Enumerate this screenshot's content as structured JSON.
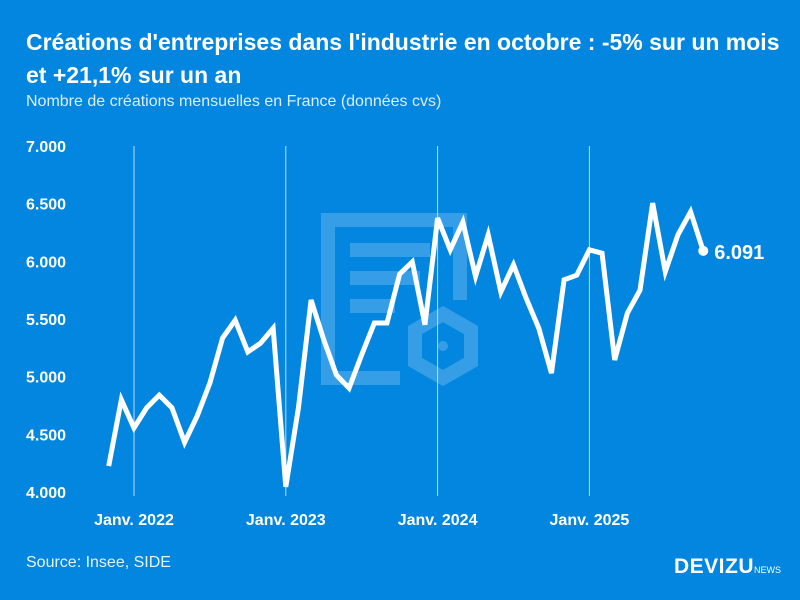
{
  "header": {
    "title": "Créations d'entreprises dans l'industrie en octobre : -5% sur un mois et +21,1% sur un an",
    "subtitle": "Nombre de créations mensuelles en France (données cvs)"
  },
  "footer": {
    "source": "Source: Insee, SIDE",
    "logo_main": "DEVIZU",
    "logo_sub": "NEWS"
  },
  "colors": {
    "background": "#0286e0",
    "line": "#ffffff"
  },
  "chart_data": {
    "type": "line",
    "title": "Créations d'entreprises dans l'industrie en octobre : -5% sur un mois et +21,1% sur un an",
    "subtitle": "Nombre de créations mensuelles en France (données cvs)",
    "ylim": [
      4000,
      7000
    ],
    "yticks": [
      "4.000",
      "4.500",
      "5.000",
      "5.500",
      "6.000",
      "6.500",
      "7.000"
    ],
    "ytick_values": [
      4000,
      4500,
      5000,
      5500,
      6000,
      6500,
      7000
    ],
    "xticks": [
      "Janv. 2022",
      "Janv. 2023",
      "Janv. 2024",
      "Janv. 2025"
    ],
    "xtick_months": [
      "2022-01",
      "2023-01",
      "2024-01",
      "2025-01"
    ],
    "grid": "vertical lines at January",
    "last_label": "6.091",
    "x": [
      "2021-11",
      "2021-12",
      "2022-01",
      "2022-02",
      "2022-03",
      "2022-04",
      "2022-05",
      "2022-06",
      "2022-07",
      "2022-08",
      "2022-09",
      "2022-10",
      "2022-11",
      "2022-12",
      "2023-01",
      "2023-02",
      "2023-03",
      "2023-04",
      "2023-05",
      "2023-06",
      "2023-07",
      "2023-08",
      "2023-09",
      "2023-10",
      "2023-11",
      "2023-12",
      "2024-01",
      "2024-02",
      "2024-03",
      "2024-04",
      "2024-05",
      "2024-06",
      "2024-07",
      "2024-08",
      "2024-09",
      "2024-10",
      "2024-11",
      "2024-12",
      "2025-01",
      "2025-02",
      "2025-03",
      "2025-04",
      "2025-05",
      "2025-06",
      "2025-07",
      "2025-08",
      "2025-09",
      "2025-10"
    ],
    "values": [
      4225,
      4800,
      4555,
      4730,
      4840,
      4730,
      4430,
      4660,
      4945,
      5335,
      5490,
      5215,
      5290,
      5420,
      4045,
      4730,
      5665,
      5320,
      5015,
      4900,
      5190,
      5465,
      5465,
      5890,
      5995,
      5450,
      6375,
      6100,
      6340,
      5870,
      6230,
      5735,
      5970,
      5680,
      5420,
      5030,
      5840,
      5880,
      6100,
      6070,
      5145,
      5550,
      5750,
      6505,
      5910,
      6230,
      6430,
      6091
    ]
  }
}
